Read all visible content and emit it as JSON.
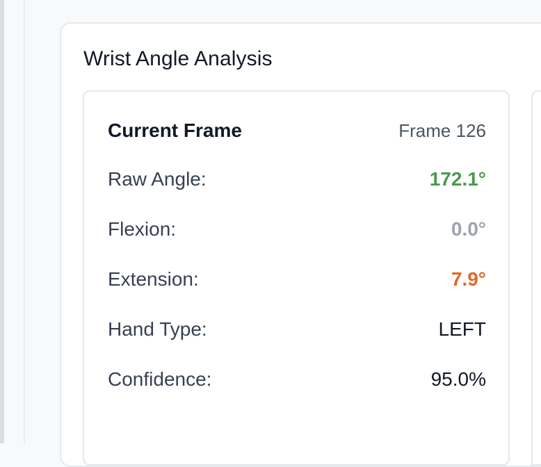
{
  "panel": {
    "title": "Wrist Angle Analysis"
  },
  "current_frame": {
    "title": "Current Frame",
    "frame_label": "Frame 126",
    "metrics": [
      {
        "label": "Raw Angle:",
        "value": "172.1°",
        "color": "#4a9a4e"
      },
      {
        "label": "Flexion:",
        "value": "0.0°",
        "color": "#9ca3af"
      },
      {
        "label": "Extension:",
        "value": "7.9°",
        "color": "#e0662a"
      },
      {
        "label": "Hand Type:",
        "value": "LEFT",
        "color": "#111827"
      },
      {
        "label": "Confidence:",
        "value": "95.0%",
        "color": "#111827"
      }
    ]
  }
}
